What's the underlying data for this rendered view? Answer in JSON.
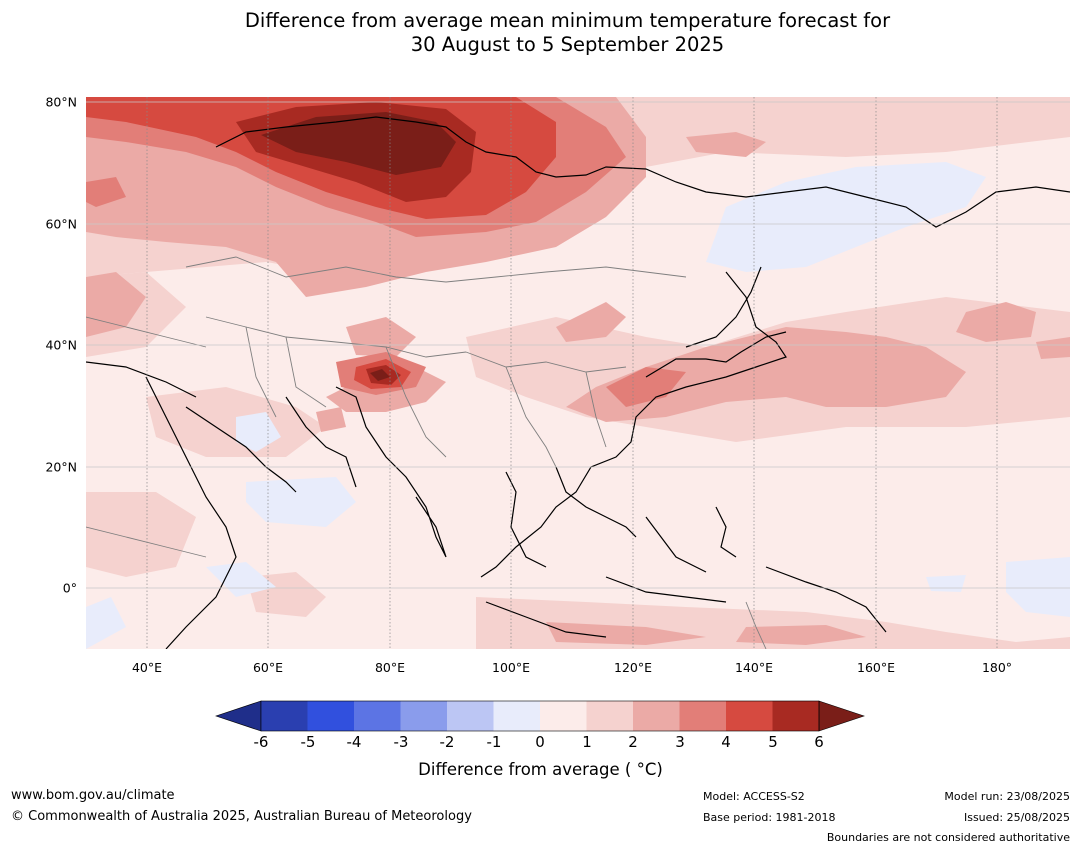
{
  "title_line1": "Difference from average mean minimum temperature forecast for",
  "title_line2": "30 August to 5 September 2025",
  "map": {
    "lat_labels": [
      "80°N",
      "60°N",
      "40°N",
      "20°N",
      "0°"
    ],
    "lon_labels": [
      "40°E",
      "60°E",
      "80°E",
      "100°E",
      "120°E",
      "140°E",
      "160°E",
      "180°"
    ],
    "lon_range": [
      30,
      192
    ],
    "lat_range": [
      -10,
      81
    ]
  },
  "colorbar": {
    "ticks": [
      "-6",
      "-5",
      "-4",
      "-3",
      "-2",
      "-1",
      "0",
      "1",
      "2",
      "3",
      "4",
      "5",
      "6"
    ],
    "colors": [
      "#1f2e8a",
      "#2a3fb0",
      "#3150de",
      "#5c74e4",
      "#8a9cec",
      "#bcc6f4",
      "#e8ecfb",
      "#fcecea",
      "#f5d2cf",
      "#ebaaa6",
      "#e27e78",
      "#d64a40",
      "#a82a22",
      "#7a1e18"
    ],
    "label": "Difference from average ( °C)"
  },
  "footer": {
    "website": "www.bom.gov.au/climate",
    "copyright": "© Commonwealth of Australia 2025, Australian Bureau of Meteorology",
    "model": "Model: ACCESS-S2",
    "base_period": "Base period: 1981-2018",
    "model_run": "Model run: 23/08/2025",
    "issued": "Issued: 25/08/2025",
    "disclaimer": "Boundaries are not considered authoritative"
  }
}
